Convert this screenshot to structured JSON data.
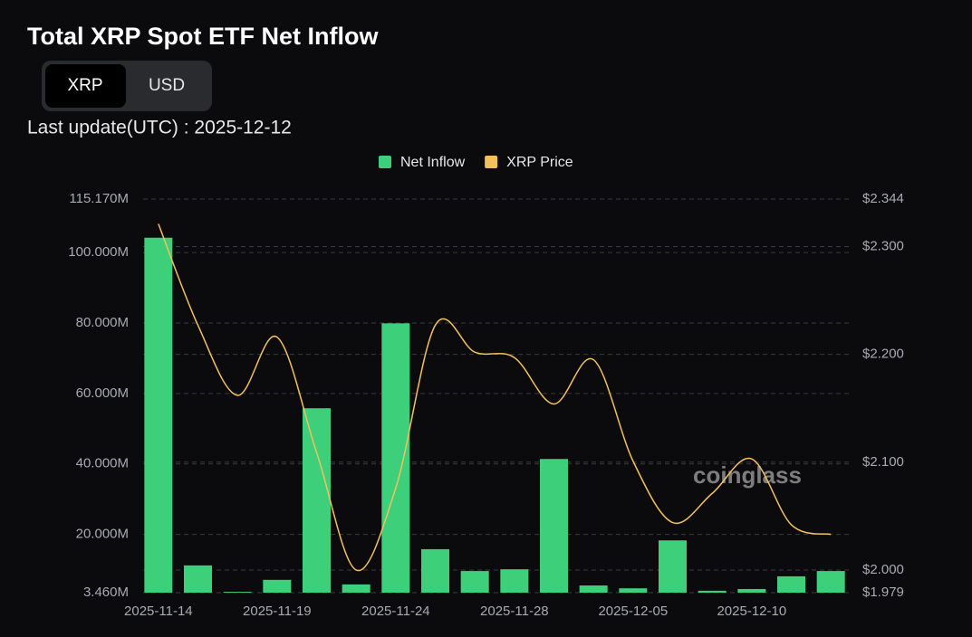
{
  "title": "Total XRP Spot ETF Net Inflow",
  "toggle": [
    "XRP",
    "USD"
  ],
  "last_update": "Last update(UTC) : 2025-12-12",
  "watermark": "coinglass",
  "chart_data": {
    "type": "bar",
    "categories": [
      "2025-11-14",
      null,
      null,
      "2025-11-19",
      null,
      null,
      "2025-11-24",
      null,
      null,
      "2025-11-28",
      null,
      null,
      "2025-12-05",
      null,
      null,
      "2025-12-10",
      null,
      null
    ],
    "series": [
      {
        "name": "Net Inflow",
        "type": "bar",
        "color": "#3ecf7a",
        "values": [
          104.2,
          11.2,
          3.7,
          7.1,
          55.8,
          5.8,
          79.9,
          15.8,
          9.6,
          10.1,
          41.4,
          5.5,
          4.7,
          18.3,
          4.0,
          4.5,
          8.1,
          9.6
        ]
      },
      {
        "name": "XRP Price",
        "type": "line",
        "axis": "y2",
        "color": "#f2c15c",
        "values": [
          2.321,
          2.227,
          2.162,
          2.216,
          2.109,
          2.0,
          2.076,
          2.227,
          2.202,
          2.197,
          2.154,
          2.195,
          2.101,
          2.044,
          2.071,
          2.103,
          2.042,
          2.033
        ]
      }
    ],
    "ylim": [
      3.46,
      115.17
    ],
    "yticks": [
      {
        "value": 3.46,
        "label": "3.460M"
      },
      {
        "value": 20,
        "label": "20.000M"
      },
      {
        "value": 40,
        "label": "40.000M"
      },
      {
        "value": 60,
        "label": "60.000M"
      },
      {
        "value": 80,
        "label": "80.000M"
      },
      {
        "value": 100,
        "label": "100.000M"
      },
      {
        "value": 115.17,
        "label": "115.170M"
      }
    ],
    "y2lim": [
      1.979,
      2.344
    ],
    "y2ticks": [
      {
        "value": 1.979,
        "label": "$1.979"
      },
      {
        "value": 2.0,
        "label": "$2.000"
      },
      {
        "value": 2.1,
        "label": "$2.100"
      },
      {
        "value": 2.2,
        "label": "$2.200"
      },
      {
        "value": 2.3,
        "label": "$2.300"
      },
      {
        "value": 2.344,
        "label": "$2.344"
      }
    ],
    "grid": true
  }
}
